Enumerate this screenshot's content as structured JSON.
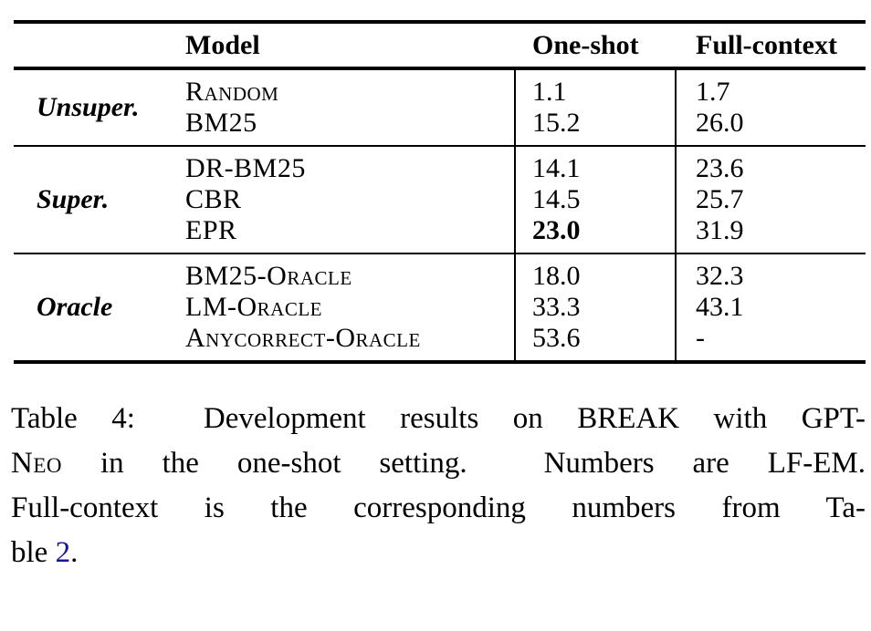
{
  "colors": {
    "text": "#000000",
    "rule": "#000000",
    "link_blue": "#151599"
  },
  "table": {
    "header": {
      "model": "Model",
      "one_shot": "One-shot",
      "full_context": "Full-context"
    },
    "groups": [
      {
        "label": "Unsuper.",
        "rows": [
          {
            "model": "Random",
            "one_shot": "1.1",
            "full_context": "1.7"
          },
          {
            "model": "BM25",
            "one_shot": "15.2",
            "full_context": "26.0"
          }
        ]
      },
      {
        "label": "Super.",
        "rows": [
          {
            "model": "DR-BM25",
            "one_shot": "14.1",
            "full_context": "23.6"
          },
          {
            "model": "CBR",
            "one_shot": "14.5",
            "full_context": "25.7"
          },
          {
            "model": "EPR",
            "one_shot": "23.0",
            "one_shot_bold": true,
            "full_context": "31.9"
          }
        ]
      },
      {
        "label": "Oracle",
        "rows": [
          {
            "model": "BM25-Oracle",
            "one_shot": "18.0",
            "full_context": "32.3"
          },
          {
            "model": "LM-Oracle",
            "one_shot": "33.3",
            "full_context": "43.1"
          },
          {
            "model": "Anycorrect-Oracle",
            "one_shot": "53.6",
            "full_context": "-"
          }
        ]
      }
    ]
  },
  "caption": {
    "lines": [
      {
        "last": false,
        "segments": [
          {
            "text": "Table 4:  Development results on BREAK with GPT-"
          }
        ]
      },
      {
        "last": false,
        "segments": [
          {
            "text": "Neo",
            "smallcaps": true
          },
          {
            "text": " in the one-shot setting.  Numbers are LF-EM."
          }
        ]
      },
      {
        "last": false,
        "segments": [
          {
            "text": "Full-context is the corresponding numbers from Ta-"
          }
        ]
      },
      {
        "last": true,
        "segments": [
          {
            "text": "ble "
          },
          {
            "text": "2",
            "link": true
          },
          {
            "text": "."
          }
        ]
      }
    ]
  }
}
